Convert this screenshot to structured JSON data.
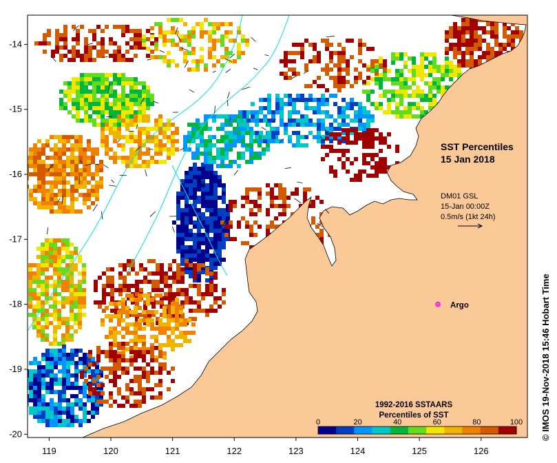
{
  "title": "SST Percentiles",
  "date": "15 Jan 2018",
  "current_info": {
    "source": "DM01 GSL",
    "time": "15-Jan 00:00Z",
    "scale": "0.5m/s (1kt 24h)"
  },
  "argo": {
    "label": "Argo",
    "lon": 125.3,
    "lat": -18.0,
    "color": "#ff00ff"
  },
  "legend": {
    "title_line1": "1992-2016 SSTAARS",
    "title_line2": "Percentiles of SST",
    "ticks": [
      "0",
      "20",
      "40",
      "60",
      "80",
      "100"
    ],
    "colors": [
      "#00008b",
      "#0040c0",
      "#0096ff",
      "#00c8c8",
      "#00b43c",
      "#64dc1e",
      "#f0e600",
      "#f0b400",
      "#f08200",
      "#d25a00",
      "#a00000"
    ]
  },
  "axes": {
    "x_ticks": [
      "119",
      "120",
      "121",
      "122",
      "123",
      "124",
      "125",
      "126"
    ],
    "y_ticks": [
      "-14",
      "-15",
      "-16",
      "-17",
      "-18",
      "-19",
      "-20"
    ],
    "x_range": [
      118.65,
      126.75
    ],
    "y_range": [
      -20.05,
      -13.55
    ]
  },
  "copyright": "© IMOS 19-Nov-2018 15:46 Hobart Time",
  "colors": {
    "land": "#fbc898",
    "ocean": "#ffffff",
    "bathymetry": "#00e5e5"
  }
}
